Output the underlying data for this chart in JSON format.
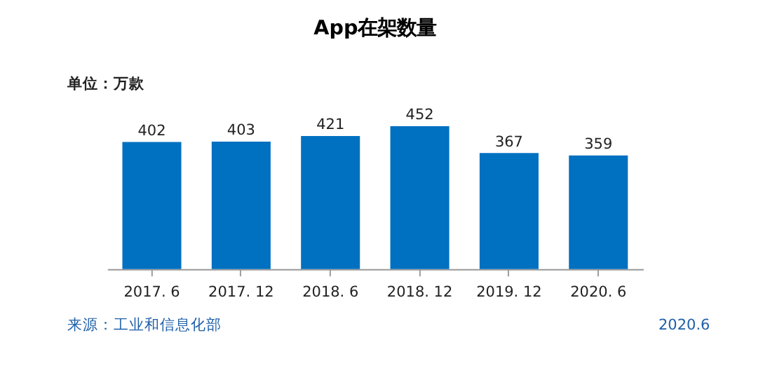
{
  "chart_data": {
    "type": "bar",
    "title": "App在架数量",
    "categories": [
      "2017. 6",
      "2017. 12",
      "2018. 6",
      "2018. 12",
      "2019. 12",
      "2020. 6"
    ],
    "values": [
      402,
      403,
      421,
      452,
      367,
      359
    ],
    "color": "#0070c0",
    "data_labels": true,
    "grid": false,
    "annotations": [
      "单位：万款",
      "来源：工业和信息化部",
      "2020.6"
    ]
  }
}
